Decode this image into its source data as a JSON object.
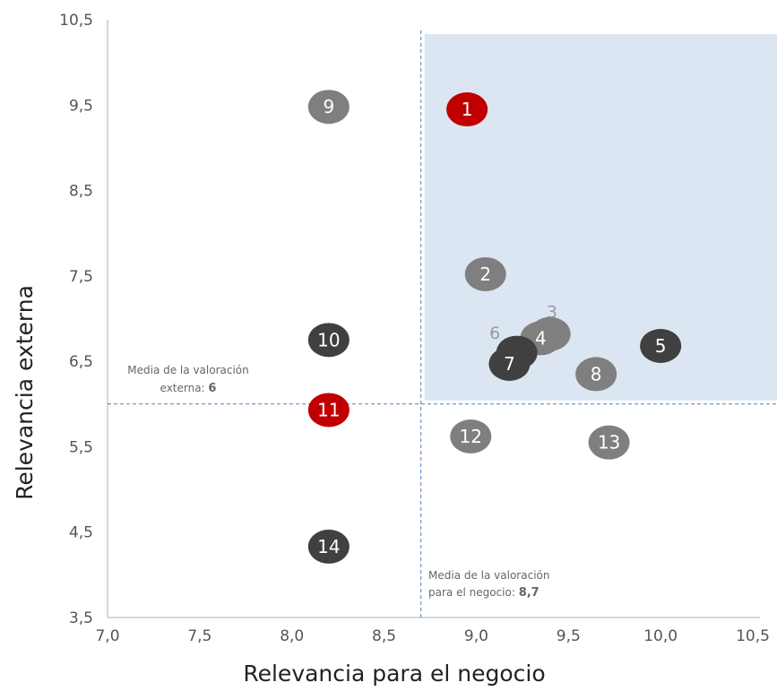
{
  "chart_data": {
    "type": "scatter",
    "xlabel": "Relevancia para el negocio",
    "ylabel": "Relevancia externa",
    "xlim": [
      7.0,
      10.5
    ],
    "ylim": [
      3.5,
      10.5
    ],
    "xticks": [
      "7,0",
      "7,5",
      "8,0",
      "8,5",
      "9,0",
      "9,5",
      "10,0",
      "10,5"
    ],
    "yticks": [
      "3,5",
      "4,5",
      "5,5",
      "6,5",
      "7,5",
      "8,5",
      "9,5",
      "10,5"
    ],
    "points": [
      {
        "label": "1",
        "x": 8.95,
        "y": 9.45,
        "color": "#c00000"
      },
      {
        "label": "2",
        "x": 9.05,
        "y": 7.52,
        "color": "#7f7f7f"
      },
      {
        "label": "3",
        "x": 9.4,
        "y": 6.82,
        "color": "#808080"
      },
      {
        "label": "4",
        "x": 9.35,
        "y": 6.77,
        "color": "#7f7f7f"
      },
      {
        "label": "5",
        "x": 10.0,
        "y": 6.68,
        "color": "#404040"
      },
      {
        "label": "6",
        "x": 9.22,
        "y": 6.6,
        "color": "#404040"
      },
      {
        "label": "7",
        "x": 9.18,
        "y": 6.47,
        "color": "#404040"
      },
      {
        "label": "8",
        "x": 9.65,
        "y": 6.35,
        "color": "#7f7f7f"
      },
      {
        "label": "9",
        "x": 8.2,
        "y": 9.48,
        "color": "#7f7f7f"
      },
      {
        "label": "10",
        "x": 8.2,
        "y": 6.75,
        "color": "#404040"
      },
      {
        "label": "11",
        "x": 8.2,
        "y": 5.93,
        "color": "#c00000"
      },
      {
        "label": "12",
        "x": 8.97,
        "y": 5.62,
        "color": "#7f7f7f"
      },
      {
        "label": "13",
        "x": 9.72,
        "y": 5.55,
        "color": "#7f7f7f"
      },
      {
        "label": "14",
        "x": 8.2,
        "y": 4.33,
        "color": "#404040"
      }
    ],
    "external_labels": [
      {
        "label": "3",
        "x": 9.44,
        "y": 6.95
      },
      {
        "label": "6",
        "x": 9.13,
        "y": 6.7
      }
    ],
    "reference_lines": {
      "x": 8.7,
      "y": 6.0
    },
    "highlight_region": {
      "x": [
        8.7,
        10.5
      ],
      "y": [
        6.0,
        10.5
      ],
      "color": "#dce6f2"
    },
    "annotations": {
      "y_mean": {
        "line1": "Media de la valoración",
        "line2_prefix": "externa: ",
        "line2_value": "6"
      },
      "x_mean": {
        "line1": "Media de la valoración",
        "line2_prefix": "para el negocio: ",
        "line2_value": "8,7"
      }
    },
    "grid": false,
    "legend": "none"
  }
}
